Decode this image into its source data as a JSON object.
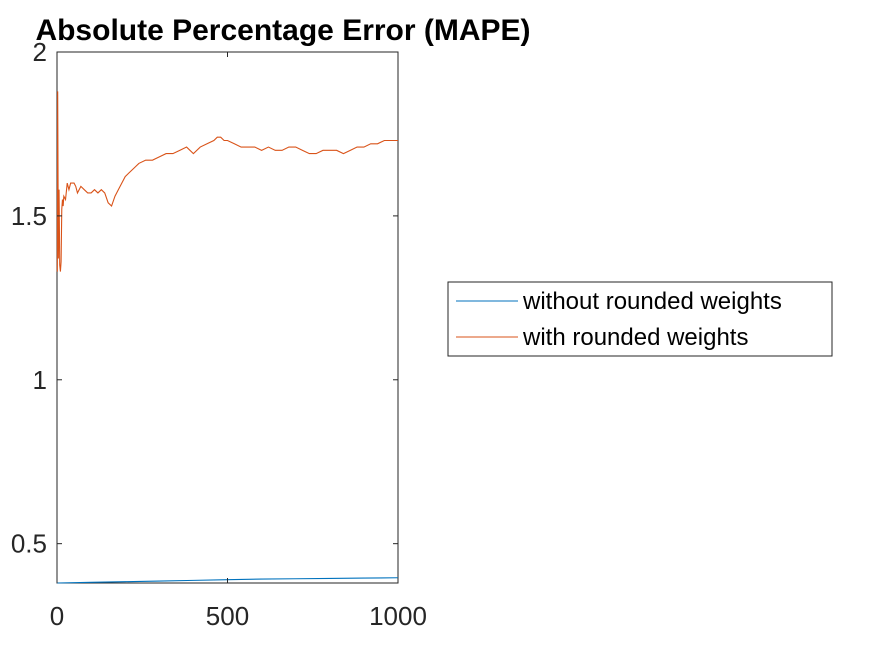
{
  "chart_data": {
    "type": "line",
    "title": "Absolute Percentage Error (MAPE)",
    "xlabel": "",
    "ylabel": "",
    "xlim": [
      0,
      1000
    ],
    "ylim": [
      0.38,
      2
    ],
    "xticks": [
      0,
      500,
      1000
    ],
    "yticks": [
      0.5,
      1,
      1.5,
      2
    ],
    "xtick_labels": [
      "0",
      "500",
      "1000"
    ],
    "ytick_labels": [
      "0.5",
      "1",
      "1.5",
      "2"
    ],
    "grid": false,
    "legend": {
      "placement": "outside-right"
    },
    "series": [
      {
        "name": "without rounded weights",
        "color": "#0072BD",
        "x": [
          1,
          100,
          200,
          300,
          400,
          500,
          600,
          700,
          800,
          900,
          1000
        ],
        "y": [
          0.38,
          0.382,
          0.384,
          0.386,
          0.388,
          0.39,
          0.392,
          0.393,
          0.394,
          0.395,
          0.396
        ]
      },
      {
        "name": "with rounded weights",
        "color": "#D95319",
        "x": [
          1,
          2,
          4,
          6,
          8,
          10,
          12,
          14,
          16,
          18,
          20,
          25,
          30,
          35,
          40,
          45,
          50,
          55,
          60,
          70,
          80,
          90,
          100,
          110,
          120,
          130,
          140,
          150,
          160,
          170,
          180,
          190,
          200,
          210,
          220,
          230,
          240,
          260,
          280,
          300,
          320,
          340,
          360,
          380,
          400,
          420,
          440,
          460,
          470,
          480,
          490,
          500,
          520,
          540,
          560,
          580,
          600,
          620,
          640,
          660,
          680,
          700,
          720,
          740,
          760,
          780,
          800,
          820,
          840,
          860,
          880,
          900,
          920,
          940,
          960,
          980,
          1000
        ],
        "y": [
          1.33,
          1.88,
          1.37,
          1.58,
          1.35,
          1.33,
          1.36,
          1.52,
          1.55,
          1.53,
          1.56,
          1.55,
          1.6,
          1.58,
          1.6,
          1.6,
          1.6,
          1.59,
          1.57,
          1.59,
          1.58,
          1.57,
          1.57,
          1.58,
          1.57,
          1.58,
          1.57,
          1.54,
          1.53,
          1.56,
          1.58,
          1.6,
          1.62,
          1.63,
          1.64,
          1.65,
          1.66,
          1.67,
          1.67,
          1.68,
          1.69,
          1.69,
          1.7,
          1.71,
          1.69,
          1.71,
          1.72,
          1.73,
          1.74,
          1.74,
          1.73,
          1.73,
          1.72,
          1.71,
          1.71,
          1.71,
          1.7,
          1.71,
          1.7,
          1.7,
          1.71,
          1.71,
          1.7,
          1.69,
          1.69,
          1.7,
          1.7,
          1.7,
          1.69,
          1.7,
          1.71,
          1.71,
          1.72,
          1.72,
          1.73,
          1.73,
          1.73
        ]
      }
    ]
  }
}
